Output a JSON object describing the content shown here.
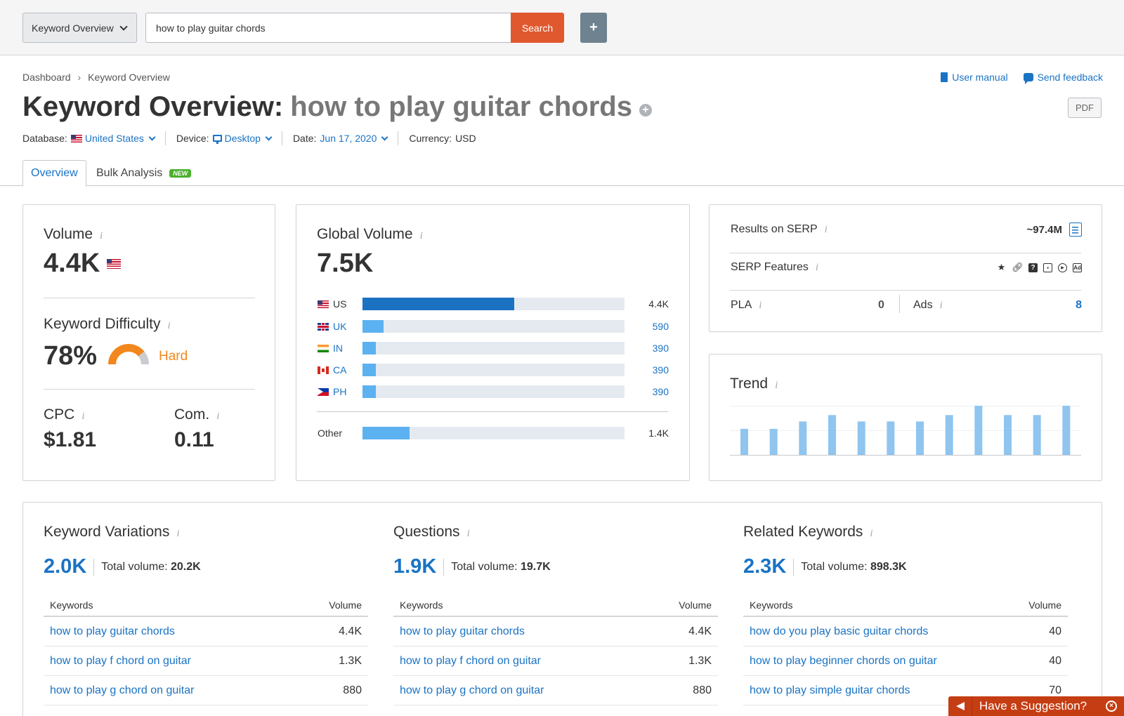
{
  "topbar": {
    "tool_select": "Keyword Overview",
    "search_value": "how to play guitar chords",
    "search_button": "Search",
    "add_button": "+"
  },
  "breadcrumb": [
    "Dashboard",
    "Keyword Overview"
  ],
  "links": {
    "user_manual": "User manual",
    "send_feedback": "Send feedback"
  },
  "title": {
    "prefix": "Keyword Overview:",
    "keyword": "how to play guitar chords"
  },
  "pdf_button": "PDF",
  "meta": {
    "database_label": "Database:",
    "database_value": "United States",
    "device_label": "Device:",
    "device_value": "Desktop",
    "date_label": "Date:",
    "date_value": "Jun 17, 2020",
    "currency_label": "Currency:",
    "currency_value": "USD"
  },
  "tabs": {
    "overview": "Overview",
    "bulk": "Bulk Analysis",
    "bulk_badge": "NEW"
  },
  "volume": {
    "label": "Volume",
    "value": "4.4K",
    "kd_label": "Keyword Difficulty",
    "kd_value": "78%",
    "kd_level": "Hard",
    "kd_fraction": 0.78,
    "cpc_label": "CPC",
    "cpc_value": "$1.81",
    "com_label": "Com.",
    "com_value": "0.11"
  },
  "global_volume": {
    "label": "Global Volume",
    "value": "7.5K",
    "rows": [
      {
        "code": "US",
        "flag": "flag-us",
        "value": "4.4K",
        "fraction": 0.58,
        "dark": true
      },
      {
        "code": "UK",
        "flag": "flag-uk",
        "value": "590",
        "fraction": 0.08,
        "dark": false
      },
      {
        "code": "IN",
        "flag": "flag-in",
        "value": "390",
        "fraction": 0.05,
        "dark": false
      },
      {
        "code": "CA",
        "flag": "flag-ca",
        "value": "390",
        "fraction": 0.05,
        "dark": false
      },
      {
        "code": "PH",
        "flag": "flag-ph",
        "value": "390",
        "fraction": 0.05,
        "dark": false
      }
    ],
    "other_label": "Other",
    "other_value": "1.4K",
    "other_fraction": 0.18
  },
  "serp": {
    "results_label": "Results on SERP",
    "results_value": "~97.4M",
    "features_label": "SERP Features",
    "feature_icons": [
      "star-icon",
      "link-icon",
      "question-icon",
      "image-icon",
      "video-icon",
      "ad-icon"
    ],
    "pla_label": "PLA",
    "pla_value": "0",
    "ads_label": "Ads",
    "ads_value": "8"
  },
  "trend": {
    "label": "Trend",
    "chart_data": {
      "type": "bar",
      "values": [
        0.53,
        0.53,
        0.68,
        0.81,
        0.68,
        0.68,
        0.68,
        0.81,
        1.0,
        0.81,
        0.81,
        1.0
      ],
      "ylim": [
        0,
        1
      ]
    }
  },
  "colors": {
    "accent": "#1a73c4",
    "orange": "#f2871d",
    "search": "#e0582e",
    "bar_light": "#5cb1f0",
    "bar_dark": "#1b72c2",
    "trend_bar": "#8fc5ef"
  },
  "sections": [
    {
      "title": "Keyword Variations",
      "count": "2.0K",
      "total_label": "Total volume:",
      "total_value": "20.2K",
      "col_keywords": "Keywords",
      "col_volume": "Volume",
      "rows": [
        {
          "keyword": "how to play guitar chords",
          "volume": "4.4K"
        },
        {
          "keyword": "how to play f chord on guitar",
          "volume": "1.3K"
        },
        {
          "keyword": "how to play g chord on guitar",
          "volume": "880"
        }
      ]
    },
    {
      "title": "Questions",
      "count": "1.9K",
      "total_label": "Total volume:",
      "total_value": "19.7K",
      "col_keywords": "Keywords",
      "col_volume": "Volume",
      "rows": [
        {
          "keyword": "how to play guitar chords",
          "volume": "4.4K"
        },
        {
          "keyword": "how to play f chord on guitar",
          "volume": "1.3K"
        },
        {
          "keyword": "how to play g chord on guitar",
          "volume": "880"
        }
      ]
    },
    {
      "title": "Related Keywords",
      "count": "2.3K",
      "total_label": "Total volume:",
      "total_value": "898.3K",
      "col_keywords": "Keywords",
      "col_volume": "Volume",
      "rows": [
        {
          "keyword": "how do you play basic guitar chords",
          "volume": "40"
        },
        {
          "keyword": "how to play beginner chords on guitar",
          "volume": "40"
        },
        {
          "keyword": "how to play simple guitar chords",
          "volume": "70"
        }
      ]
    }
  ],
  "suggestion": "Have a Suggestion?"
}
